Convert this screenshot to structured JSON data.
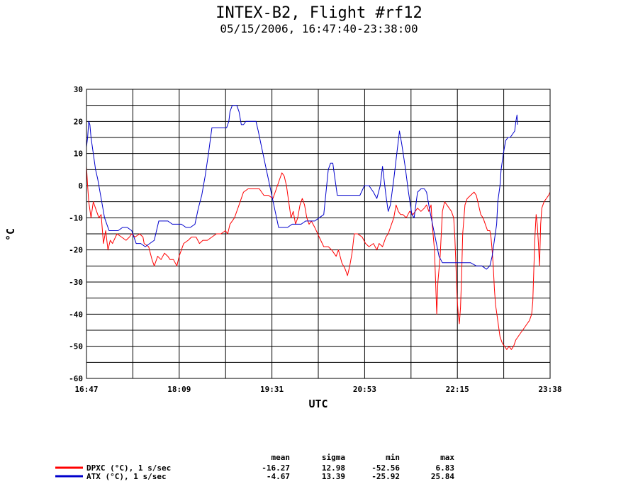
{
  "chart_data": {
    "type": "line",
    "title": "INTEX-B2, Flight #rf12",
    "subtitle": "05/15/2006, 16:47:40-23:38:00",
    "xlabel": "UTC",
    "ylabel": "°C",
    "x_tick_labels": [
      "16:47",
      "18:09",
      "19:31",
      "20:53",
      "22:15",
      "23:38"
    ],
    "y_ticks": [
      30,
      20,
      10,
      0,
      -10,
      -20,
      -30,
      -40,
      -50,
      -60
    ],
    "ylim": [
      -60,
      30
    ],
    "grid": true,
    "x_unit": "minutes after 16:47:40 UTC",
    "xlim": [
      0,
      410.33
    ],
    "series": [
      {
        "name": "DPXC (°C), 1 s/sec",
        "color": "#ff0000",
        "points": [
          [
            0,
            6
          ],
          [
            1,
            0
          ],
          [
            2,
            -5
          ],
          [
            4,
            -10
          ],
          [
            6,
            -5
          ],
          [
            9,
            -8
          ],
          [
            11,
            -10
          ],
          [
            13,
            -9
          ],
          [
            15,
            -18
          ],
          [
            17,
            -14
          ],
          [
            19,
            -20
          ],
          [
            21,
            -17
          ],
          [
            23,
            -18
          ],
          [
            27,
            -15
          ],
          [
            31,
            -16
          ],
          [
            35,
            -17
          ],
          [
            38,
            -16
          ],
          [
            40,
            -15
          ],
          [
            43,
            -16
          ],
          [
            47,
            -15
          ],
          [
            50,
            -16
          ],
          [
            51,
            -18
          ],
          [
            55,
            -19
          ],
          [
            58,
            -23
          ],
          [
            60,
            -25
          ],
          [
            63,
            -22
          ],
          [
            66,
            -23
          ],
          [
            69,
            -21
          ],
          [
            72,
            -22
          ],
          [
            74,
            -23
          ],
          [
            77,
            -23
          ],
          [
            80,
            -25
          ],
          [
            82,
            -22
          ],
          [
            86,
            -18
          ],
          [
            90,
            -17
          ],
          [
            93,
            -16
          ],
          [
            97,
            -16
          ],
          [
            100,
            -18
          ],
          [
            103,
            -17
          ],
          [
            107,
            -17
          ],
          [
            111,
            -16
          ],
          [
            115,
            -15
          ],
          [
            119,
            -15
          ],
          [
            123,
            -14
          ],
          [
            125,
            -15
          ],
          [
            127,
            -12
          ],
          [
            131,
            -10
          ],
          [
            135,
            -6
          ],
          [
            139,
            -2
          ],
          [
            143,
            -1
          ],
          [
            149,
            -1
          ],
          [
            153,
            -1
          ],
          [
            157,
            -3
          ],
          [
            161,
            -3
          ],
          [
            165,
            -4
          ],
          [
            167,
            -2
          ],
          [
            169,
            0
          ],
          [
            171,
            2
          ],
          [
            173,
            4
          ],
          [
            175,
            3
          ],
          [
            177,
            0
          ],
          [
            179,
            -5
          ],
          [
            181,
            -10
          ],
          [
            183,
            -8
          ],
          [
            185,
            -12
          ],
          [
            187,
            -10
          ],
          [
            189,
            -6
          ],
          [
            191,
            -4
          ],
          [
            193,
            -6
          ],
          [
            195,
            -10
          ],
          [
            197,
            -12
          ],
          [
            199,
            -11
          ],
          [
            202,
            -13
          ],
          [
            206,
            -16
          ],
          [
            210,
            -19
          ],
          [
            214,
            -19
          ],
          [
            217,
            -20
          ],
          [
            221,
            -22
          ],
          [
            223,
            -20
          ],
          [
            226,
            -24
          ],
          [
            229,
            -26
          ],
          [
            231,
            -28
          ],
          [
            233,
            -25
          ],
          [
            235,
            -21
          ],
          [
            237,
            -15
          ],
          [
            240,
            -15
          ],
          [
            244,
            -16
          ],
          [
            247,
            -18
          ],
          [
            250,
            -19
          ],
          [
            254,
            -18
          ],
          [
            257,
            -20
          ],
          [
            259,
            -18
          ],
          [
            262,
            -19
          ],
          [
            265,
            -16
          ],
          [
            267,
            -15
          ],
          [
            270,
            -12
          ],
          [
            272,
            -10
          ],
          [
            274,
            -6
          ],
          [
            276,
            -8
          ],
          [
            278,
            -9
          ],
          [
            280,
            -9
          ],
          [
            283,
            -10
          ],
          [
            286,
            -8
          ],
          [
            289,
            -9
          ],
          [
            293,
            -7
          ],
          [
            296,
            -8
          ],
          [
            299,
            -7
          ],
          [
            301,
            -6
          ],
          [
            303,
            -8
          ],
          [
            305,
            -6
          ],
          [
            306,
            -12
          ],
          [
            308,
            -20
          ],
          [
            309,
            -30
          ],
          [
            310,
            -40
          ],
          [
            311,
            -30
          ],
          [
            313,
            -22
          ],
          [
            315,
            -8
          ],
          [
            317,
            -5
          ],
          [
            319,
            -6
          ],
          [
            321,
            -7
          ],
          [
            323,
            -8
          ],
          [
            325,
            -10
          ],
          [
            326,
            -16
          ],
          [
            327,
            -25
          ],
          [
            328,
            -35
          ],
          [
            329,
            -40
          ],
          [
            330,
            -43
          ],
          [
            331,
            -38
          ],
          [
            332,
            -28
          ],
          [
            333,
            -15
          ],
          [
            335,
            -6
          ],
          [
            337,
            -4
          ],
          [
            340,
            -3
          ],
          [
            343,
            -2
          ],
          [
            345,
            -3
          ],
          [
            347,
            -6
          ],
          [
            349,
            -9
          ],
          [
            351,
            -10
          ],
          [
            353,
            -12
          ],
          [
            355,
            -14
          ],
          [
            357,
            -14
          ],
          [
            358,
            -16
          ],
          [
            359,
            -20
          ],
          [
            360,
            -25
          ],
          [
            361,
            -32
          ],
          [
            362,
            -37
          ],
          [
            364,
            -42
          ],
          [
            366,
            -47
          ],
          [
            368,
            -49
          ],
          [
            370,
            -50
          ],
          [
            372,
            -51
          ],
          [
            374,
            -50
          ],
          [
            376,
            -51
          ],
          [
            378,
            -50
          ],
          [
            380,
            -48
          ],
          [
            382,
            -47
          ],
          [
            384,
            -46
          ],
          [
            386,
            -45
          ],
          [
            388,
            -44
          ],
          [
            390,
            -43
          ],
          [
            392,
            -42
          ],
          [
            394,
            -40
          ],
          [
            395,
            -36
          ],
          [
            396,
            -25
          ],
          [
            397,
            -15
          ],
          [
            398,
            -9
          ],
          [
            399,
            -12
          ],
          [
            400,
            -18
          ],
          [
            401,
            -25
          ],
          [
            402,
            -12
          ],
          [
            403,
            -7
          ],
          [
            405,
            -5
          ],
          [
            407,
            -4
          ],
          [
            409,
            -3
          ],
          [
            410.33,
            -2
          ]
        ]
      },
      {
        "name": "ATX (°C), 1 s/sec",
        "color": "#0000cc",
        "points": [
          [
            0,
            12
          ],
          [
            1,
            15
          ],
          [
            2,
            20
          ],
          [
            3,
            19
          ],
          [
            4,
            15
          ],
          [
            6,
            10
          ],
          [
            8,
            5
          ],
          [
            10,
            2
          ],
          [
            12,
            -2
          ],
          [
            14,
            -6
          ],
          [
            16,
            -10
          ],
          [
            18,
            -12
          ],
          [
            20,
            -14
          ],
          [
            24,
            -14
          ],
          [
            28,
            -14
          ],
          [
            32,
            -13
          ],
          [
            36,
            -13
          ],
          [
            40,
            -14
          ],
          [
            44,
            -18
          ],
          [
            48,
            -18
          ],
          [
            52,
            -19
          ],
          [
            56,
            -18
          ],
          [
            60,
            -17
          ],
          [
            64,
            -11
          ],
          [
            68,
            -11
          ],
          [
            72,
            -11
          ],
          [
            76,
            -12
          ],
          [
            80,
            -12
          ],
          [
            84,
            -12
          ],
          [
            88,
            -13
          ],
          [
            92,
            -13
          ],
          [
            96,
            -12
          ],
          [
            99,
            -7
          ],
          [
            102,
            -3
          ],
          [
            105,
            3
          ],
          [
            108,
            10
          ],
          [
            111,
            18
          ],
          [
            114,
            18
          ],
          [
            118,
            18
          ],
          [
            121,
            18
          ],
          [
            124,
            18
          ],
          [
            126,
            20
          ],
          [
            127,
            23
          ],
          [
            129,
            25
          ],
          [
            131,
            25
          ],
          [
            133,
            25
          ],
          [
            135,
            23
          ],
          [
            137,
            19
          ],
          [
            139,
            19
          ],
          [
            141,
            20
          ],
          [
            144,
            20
          ],
          [
            147,
            20
          ],
          [
            150,
            20
          ],
          [
            152,
            17
          ],
          [
            155,
            12
          ],
          [
            158,
            7
          ],
          [
            161,
            2
          ],
          [
            164,
            -3
          ],
          [
            167,
            -8
          ],
          [
            170,
            -13
          ],
          [
            174,
            -13
          ],
          [
            178,
            -13
          ],
          [
            182,
            -12
          ],
          [
            186,
            -12
          ],
          [
            190,
            -12
          ],
          [
            194,
            -11
          ],
          [
            198,
            -11
          ],
          [
            202,
            -11
          ],
          [
            206,
            -10
          ],
          [
            210,
            -9
          ],
          [
            212,
            -2
          ],
          [
            214,
            5
          ],
          [
            216,
            7
          ],
          [
            218,
            7
          ],
          [
            220,
            2
          ],
          [
            222,
            -3
          ],
          [
            226,
            -3
          ],
          [
            230,
            -3
          ],
          [
            234,
            -3
          ],
          [
            238,
            -3
          ],
          [
            242,
            -3
          ],
          [
            246,
            0
          ],
          [
            250,
            0
          ],
          [
            254,
            -2
          ],
          [
            257,
            -4
          ],
          [
            260,
            0
          ],
          [
            262,
            6
          ],
          [
            263,
            3
          ],
          [
            265,
            -3
          ],
          [
            267,
            -8
          ],
          [
            269,
            -6
          ],
          [
            272,
            2
          ],
          [
            274,
            8
          ],
          [
            276,
            14
          ],
          [
            277,
            17
          ],
          [
            279,
            13
          ],
          [
            282,
            6
          ],
          [
            285,
            -2
          ],
          [
            288,
            -9
          ],
          [
            290,
            -10
          ],
          [
            293,
            -2
          ],
          [
            296,
            -1
          ],
          [
            299,
            -1
          ],
          [
            301,
            -2
          ],
          [
            304,
            -8
          ],
          [
            308,
            -15
          ],
          [
            312,
            -22
          ],
          [
            315,
            -24
          ],
          [
            320,
            -24
          ],
          [
            325,
            -24
          ],
          [
            330,
            -24
          ],
          [
            335,
            -24
          ],
          [
            340,
            -24
          ],
          [
            345,
            -25
          ],
          [
            350,
            -25
          ],
          [
            354,
            -26
          ],
          [
            357,
            -25
          ],
          [
            359,
            -22
          ],
          [
            361,
            -17
          ],
          [
            363,
            -12
          ],
          [
            364,
            -5
          ],
          [
            366,
            0
          ],
          [
            367,
            5
          ],
          [
            369,
            10
          ],
          [
            371,
            14
          ],
          [
            373,
            15
          ],
          [
            375,
            15
          ],
          [
            377,
            16
          ],
          [
            379,
            17
          ],
          [
            380,
            20
          ],
          [
            381,
            22
          ],
          [
            381.5,
            19
          ]
        ]
      }
    ],
    "stats": {
      "headers": [
        "mean",
        "sigma",
        "min",
        "max"
      ],
      "rows": [
        {
          "name": "DPXC (°C), 1 s/sec",
          "color": "#ff0000",
          "values": [
            "-16.27",
            "12.98",
            "-52.56",
            "6.83"
          ]
        },
        {
          "name": "ATX (°C), 1 s/sec",
          "color": "#0000cc",
          "values": [
            "-4.67",
            "13.39",
            "-25.92",
            "25.84"
          ]
        }
      ]
    }
  }
}
